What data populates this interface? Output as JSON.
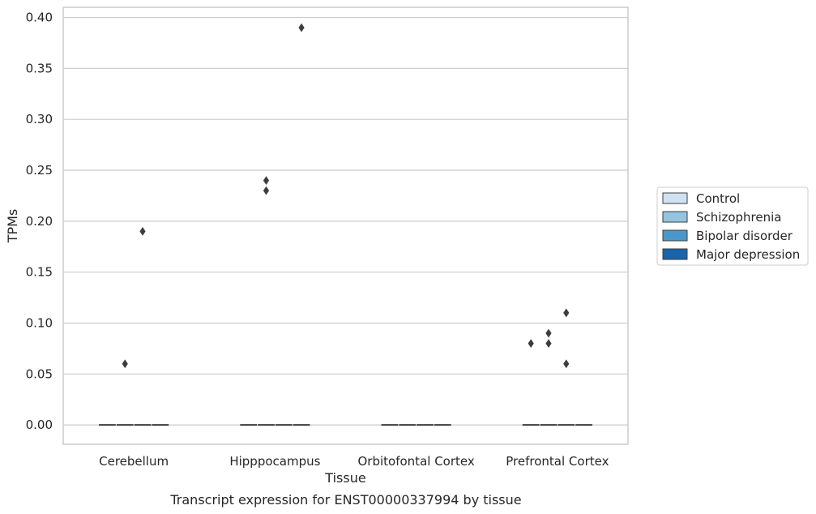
{
  "chart_data": {
    "type": "box",
    "title": "Transcript expression for ENST00000337994 by tissue",
    "xlabel": "Tissue",
    "ylabel": "TPMs",
    "ylim": [
      -0.019,
      0.41
    ],
    "yticks": [
      0.0,
      0.05,
      0.1,
      0.15,
      0.2,
      0.25,
      0.3,
      0.35,
      0.4
    ],
    "ytick_labels": [
      "0.00",
      "0.05",
      "0.10",
      "0.15",
      "0.20",
      "0.25",
      "0.30",
      "0.35",
      "0.40"
    ],
    "grid": "horizontal",
    "legend_position": "right",
    "categories": [
      "Cerebellum",
      "Hipppocampus",
      "Orbitofontal Cortex",
      "Prefrontal Cortex"
    ],
    "series": [
      {
        "name": "Control",
        "color": "#d0e1f2",
        "boxes": [
          {
            "median": 0.0
          },
          {
            "median": 0.0
          },
          {
            "median": 0.0
          },
          {
            "median": 0.0
          }
        ],
        "outliers": [
          [],
          [],
          [],
          [
            0.08
          ]
        ]
      },
      {
        "name": "Schizophrenia",
        "color": "#94c4df",
        "boxes": [
          {
            "median": 0.0
          },
          {
            "median": 0.0
          },
          {
            "median": 0.0
          },
          {
            "median": 0.0
          }
        ],
        "outliers": [
          [
            0.06
          ],
          [
            0.24,
            0.23
          ],
          [],
          [
            0.09,
            0.08
          ]
        ]
      },
      {
        "name": "Bipolar disorder",
        "color": "#4a98c9",
        "boxes": [
          {
            "median": 0.0
          },
          {
            "median": 0.0
          },
          {
            "median": 0.0
          },
          {
            "median": 0.0
          }
        ],
        "outliers": [
          [
            0.19
          ],
          [],
          [],
          [
            0.11,
            0.06
          ]
        ]
      },
      {
        "name": "Major depression",
        "color": "#1764ab",
        "boxes": [
          {
            "median": 0.0
          },
          {
            "median": 0.0
          },
          {
            "median": 0.0
          },
          {
            "median": 0.0
          }
        ],
        "outliers": [
          [],
          [
            0.39
          ],
          [],
          []
        ]
      }
    ]
  }
}
